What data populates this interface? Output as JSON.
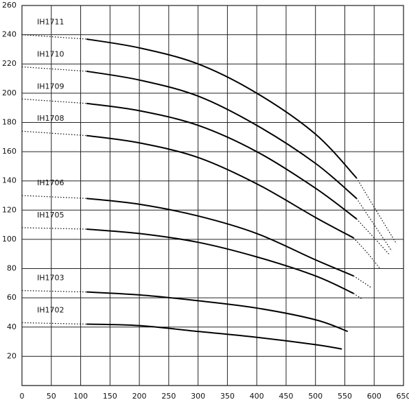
{
  "chart_data": {
    "type": "line",
    "xlim": [
      0,
      650
    ],
    "xticks": [
      0,
      50,
      100,
      150,
      200,
      250,
      300,
      350,
      400,
      450,
      500,
      550,
      600,
      650
    ],
    "ylim": [
      0,
      260
    ],
    "yticks": [
      20,
      40,
      60,
      80,
      100,
      120,
      140,
      160,
      180,
      200,
      220,
      240,
      260
    ],
    "grid": true,
    "color": "#000000",
    "series": [
      {
        "name": "IH1711",
        "dotted_left": {
          "x": [
            0,
            110
          ],
          "values": [
            240,
            237
          ]
        },
        "solid": {
          "x": [
            110,
            200,
            300,
            400,
            500,
            570
          ],
          "values": [
            237,
            231,
            220,
            200,
            172,
            142
          ]
        },
        "dotted_right": {
          "x": [
            570,
            600,
            638
          ],
          "values": [
            142,
            122,
            97
          ]
        }
      },
      {
        "name": "IH1710",
        "dotted_left": {
          "x": [
            0,
            110
          ],
          "values": [
            218,
            215
          ]
        },
        "solid": {
          "x": [
            110,
            200,
            300,
            400,
            500,
            570
          ],
          "values": [
            215,
            209,
            198,
            178,
            152,
            128
          ]
        },
        "dotted_right": {
          "x": [
            570,
            600,
            630
          ],
          "values": [
            128,
            110,
            92
          ]
        }
      },
      {
        "name": "IH1709",
        "dotted_left": {
          "x": [
            0,
            110
          ],
          "values": [
            196,
            193
          ]
        },
        "solid": {
          "x": [
            110,
            200,
            300,
            400,
            500,
            570
          ],
          "values": [
            193,
            188,
            178,
            160,
            135,
            114
          ]
        },
        "dotted_right": {
          "x": [
            570,
            600,
            625
          ],
          "values": [
            114,
            101,
            90
          ]
        }
      },
      {
        "name": "IH1708",
        "dotted_left": {
          "x": [
            0,
            110
          ],
          "values": [
            174,
            171
          ]
        },
        "solid": {
          "x": [
            110,
            200,
            300,
            400,
            500,
            565
          ],
          "values": [
            171,
            166,
            156,
            138,
            115,
            101
          ]
        },
        "dotted_right": {
          "x": [
            565,
            590,
            610
          ],
          "values": [
            101,
            90,
            80
          ]
        }
      },
      {
        "name": "IH1706",
        "dotted_left": {
          "x": [
            0,
            110
          ],
          "values": [
            130,
            128
          ]
        },
        "solid": {
          "x": [
            110,
            200,
            300,
            400,
            500,
            565
          ],
          "values": [
            128,
            124,
            116,
            104,
            86,
            75
          ]
        },
        "dotted_right": {
          "x": [
            565,
            595
          ],
          "values": [
            75,
            67
          ]
        }
      },
      {
        "name": "IH1705",
        "dotted_left": {
          "x": [
            0,
            110
          ],
          "values": [
            108,
            107
          ]
        },
        "solid": {
          "x": [
            110,
            200,
            300,
            400,
            500,
            565
          ],
          "values": [
            107,
            104,
            98,
            88,
            75,
            63
          ]
        },
        "dotted_right": {
          "x": [
            565,
            580
          ],
          "values": [
            63,
            59
          ]
        }
      },
      {
        "name": "IH1703",
        "dotted_left": {
          "x": [
            0,
            110
          ],
          "values": [
            65,
            64
          ]
        },
        "solid": {
          "x": [
            110,
            200,
            300,
            400,
            500,
            555
          ],
          "values": [
            64,
            62,
            58,
            53,
            45,
            37
          ]
        }
      },
      {
        "name": "IH1702",
        "dotted_left": {
          "x": [
            0,
            110
          ],
          "values": [
            43,
            42
          ]
        },
        "solid": {
          "x": [
            110,
            200,
            300,
            400,
            500,
            545
          ],
          "values": [
            42,
            41,
            37,
            33,
            28,
            25
          ]
        }
      }
    ]
  }
}
